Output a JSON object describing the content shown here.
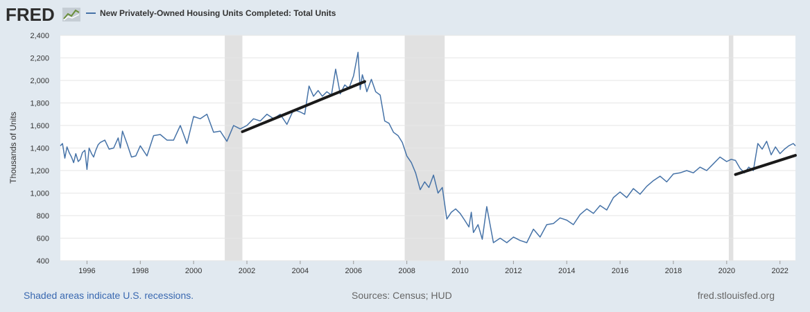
{
  "header": {
    "brand": "FRED",
    "legend_label": "New Privately-Owned Housing Units Completed: Total Units"
  },
  "footer": {
    "recession_note": "Shaded areas indicate U.S. recessions.",
    "sources": "Sources: Census; HUD",
    "site": "fred.stlouisfed.org"
  },
  "colors": {
    "series": "#4572a7",
    "trend": "#1a1a1a",
    "recession": "#e1e1e1",
    "grid": "#e6e6e6",
    "background": "#e1e9f0"
  },
  "chart_data": {
    "type": "line",
    "title": "New Privately-Owned Housing Units Completed: Total Units",
    "xlabel": "",
    "ylabel": "Thousands of Units",
    "xlim": [
      1995.0,
      2022.58
    ],
    "ylim": [
      400,
      2400
    ],
    "yticks": [
      400,
      600,
      800,
      1000,
      1200,
      1400,
      1600,
      1800,
      2000,
      2200,
      2400
    ],
    "ytick_labels": [
      "400",
      "600",
      "800",
      "1,000",
      "1,200",
      "1,400",
      "1,600",
      "1,800",
      "2,000",
      "2,200",
      "2,400"
    ],
    "xticks": [
      1996,
      1998,
      2000,
      2002,
      2004,
      2006,
      2008,
      2010,
      2012,
      2014,
      2016,
      2018,
      2020,
      2022
    ],
    "xtick_labels": [
      "1996",
      "1998",
      "2000",
      "2002",
      "2004",
      "2006",
      "2008",
      "2010",
      "2012",
      "2014",
      "2016",
      "2018",
      "2020",
      "2022"
    ],
    "grid": true,
    "recessions": [
      [
        2001.17,
        2001.83
      ],
      [
        2007.92,
        2009.42
      ],
      [
        2020.08,
        2020.25
      ]
    ],
    "trendlines": [
      {
        "x": [
          2001.83,
          2006.42
        ],
        "y": [
          1545,
          1990
        ]
      },
      {
        "x": [
          2020.33,
          2022.58
        ],
        "y": [
          1165,
          1335
        ]
      }
    ],
    "series": [
      {
        "name": "New Privately-Owned Housing Units Completed: Total Units",
        "x": [
          1995.0,
          1995.08,
          1995.17,
          1995.25,
          1995.33,
          1995.42,
          1995.5,
          1995.58,
          1995.67,
          1995.75,
          1995.83,
          1995.92,
          1996.0,
          1996.08,
          1996.17,
          1996.25,
          1996.33,
          1996.42,
          1996.5,
          1996.67,
          1996.83,
          1997.0,
          1997.17,
          1997.25,
          1997.33,
          1997.5,
          1997.67,
          1997.83,
          1998.0,
          1998.25,
          1998.5,
          1998.75,
          1999.0,
          1999.25,
          1999.5,
          1999.75,
          2000.0,
          2000.25,
          2000.5,
          2000.75,
          2001.0,
          2001.25,
          2001.5,
          2001.75,
          2002.0,
          2002.25,
          2002.5,
          2002.75,
          2003.0,
          2003.25,
          2003.5,
          2003.75,
          2004.0,
          2004.17,
          2004.33,
          2004.5,
          2004.67,
          2004.83,
          2005.0,
          2005.17,
          2005.33,
          2005.5,
          2005.67,
          2005.83,
          2006.0,
          2006.17,
          2006.25,
          2006.33,
          2006.42,
          2006.5,
          2006.67,
          2006.83,
          2007.0,
          2007.17,
          2007.33,
          2007.5,
          2007.67,
          2007.83,
          2008.0,
          2008.17,
          2008.33,
          2008.5,
          2008.67,
          2008.83,
          2009.0,
          2009.17,
          2009.33,
          2009.5,
          2009.67,
          2009.83,
          2010.0,
          2010.17,
          2010.33,
          2010.42,
          2010.5,
          2010.67,
          2010.83,
          2011.0,
          2011.25,
          2011.5,
          2011.75,
          2012.0,
          2012.25,
          2012.5,
          2012.75,
          2013.0,
          2013.25,
          2013.5,
          2013.75,
          2014.0,
          2014.25,
          2014.5,
          2014.75,
          2015.0,
          2015.25,
          2015.5,
          2015.75,
          2016.0,
          2016.25,
          2016.5,
          2016.75,
          2017.0,
          2017.25,
          2017.5,
          2017.75,
          2018.0,
          2018.25,
          2018.5,
          2018.75,
          2019.0,
          2019.25,
          2019.5,
          2019.75,
          2020.0,
          2020.17,
          2020.33,
          2020.5,
          2020.67,
          2020.83,
          2021.0,
          2021.17,
          2021.33,
          2021.5,
          2021.67,
          2021.83,
          2022.0,
          2022.17,
          2022.33,
          2022.5,
          2022.58
        ],
        "values": [
          1420,
          1440,
          1310,
          1410,
          1360,
          1320,
          1270,
          1350,
          1280,
          1300,
          1360,
          1380,
          1210,
          1400,
          1350,
          1320,
          1380,
          1430,
          1450,
          1470,
          1390,
          1400,
          1490,
          1400,
          1550,
          1440,
          1320,
          1330,
          1420,
          1330,
          1510,
          1520,
          1470,
          1470,
          1600,
          1440,
          1680,
          1660,
          1700,
          1540,
          1550,
          1460,
          1600,
          1570,
          1600,
          1660,
          1640,
          1700,
          1660,
          1700,
          1610,
          1740,
          1720,
          1700,
          1950,
          1860,
          1910,
          1860,
          1900,
          1870,
          2100,
          1880,
          1960,
          1930,
          2040,
          2250,
          1920,
          2050,
          1980,
          1900,
          2010,
          1900,
          1870,
          1640,
          1620,
          1540,
          1510,
          1450,
          1330,
          1270,
          1180,
          1030,
          1100,
          1050,
          1160,
          1000,
          1050,
          770,
          830,
          860,
          820,
          760,
          700,
          830,
          650,
          720,
          590,
          880,
          560,
          600,
          560,
          610,
          580,
          560,
          680,
          610,
          720,
          730,
          780,
          760,
          720,
          810,
          860,
          820,
          890,
          850,
          960,
          1010,
          960,
          1040,
          990,
          1060,
          1110,
          1150,
          1100,
          1170,
          1180,
          1200,
          1180,
          1230,
          1200,
          1260,
          1320,
          1280,
          1300,
          1290,
          1220,
          1180,
          1230,
          1200,
          1440,
          1390,
          1460,
          1340,
          1410,
          1350,
          1390,
          1420,
          1440,
          1420
        ]
      }
    ]
  }
}
